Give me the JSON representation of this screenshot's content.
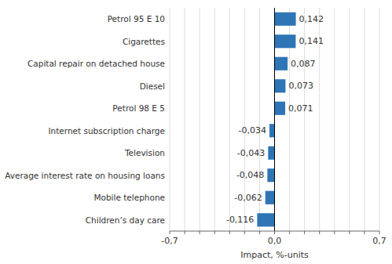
{
  "chart_data": {
    "type": "bar",
    "orientation": "horizontal",
    "categories": [
      "Children’s day care",
      "Mobile telephone",
      "Average interest rate on housing loans",
      "Television",
      "Internet subscription charge",
      "Petrol 98 E 5",
      "Diesel",
      "Capital repair on detached house",
      "Cigarettes",
      "Petrol 95 E 10"
    ],
    "values": [
      -0.116,
      -0.062,
      -0.048,
      -0.043,
      -0.034,
      0.071,
      0.073,
      0.087,
      0.141,
      0.142
    ],
    "value_labels": [
      "-0,116",
      "-0,062",
      "-0,048",
      "-0,043",
      "-0,034",
      "0,071",
      "0,073",
      "0,087",
      "0,141",
      "0,142"
    ],
    "data_labels": true,
    "color": "#2E75B6",
    "xlabel": "Impact, %-units",
    "xlim": [
      -0.7,
      0.7
    ],
    "xticks": [
      {
        "value": -0.7,
        "label": "-0,7"
      },
      {
        "value": -0.6,
        "label": null
      },
      {
        "value": -0.5,
        "label": null
      },
      {
        "value": -0.4,
        "label": null
      },
      {
        "value": -0.3,
        "label": null
      },
      {
        "value": -0.2,
        "label": null
      },
      {
        "value": -0.1,
        "label": null
      },
      {
        "value": 0.0,
        "label": "0,0"
      },
      {
        "value": 0.1,
        "label": null
      },
      {
        "value": 0.2,
        "label": null
      },
      {
        "value": 0.3,
        "label": null
      },
      {
        "value": 0.4,
        "label": null
      },
      {
        "value": 0.5,
        "label": null
      },
      {
        "value": 0.6,
        "label": null
      },
      {
        "value": 0.7,
        "label": "0,7"
      }
    ],
    "grid": true
  }
}
